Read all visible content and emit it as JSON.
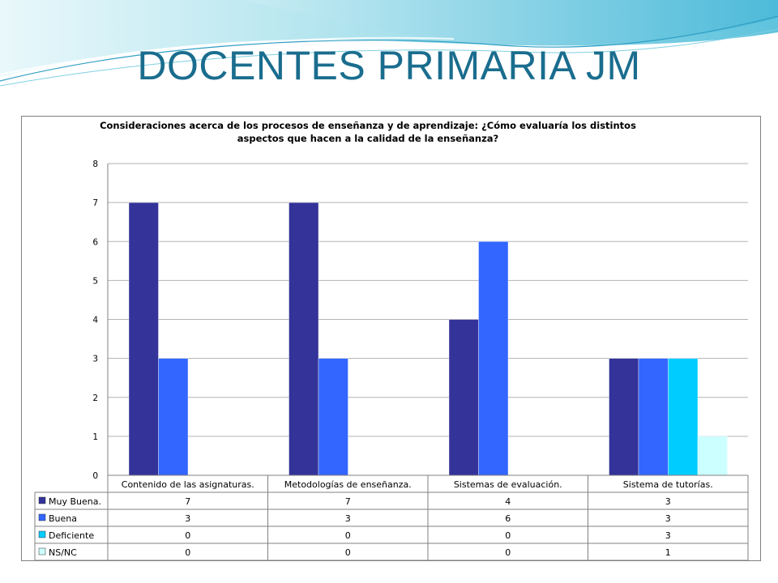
{
  "slide": {
    "title": "DOCENTES PRIMARIA JM"
  },
  "colors": {
    "title": "#1a6d8e",
    "decor_light": "#bfe8ef",
    "decor_mid": "#7fd0e2",
    "decor_dark": "#2f9fc4"
  },
  "chart_data": {
    "type": "bar",
    "title_lines": [
      "Consideraciones acerca de los procesos de enseñanza y de aprendizaje: ¿Cómo evaluaría los distintos",
      "aspectos que hacen a la calidad de la enseñanza?"
    ],
    "categories": [
      "Contenido de las asignaturas.",
      "Metodologías de enseñanza.",
      "Sistemas de evaluación.",
      "Sistema de tutorías."
    ],
    "series": [
      {
        "name": "Muy Buena.",
        "color": "#333399",
        "values": [
          7,
          7,
          4,
          3
        ]
      },
      {
        "name": "Buena",
        "color": "#3366ff",
        "values": [
          3,
          3,
          6,
          3
        ]
      },
      {
        "name": "Deficiente",
        "color": "#00ccff",
        "values": [
          0,
          0,
          0,
          3
        ]
      },
      {
        "name": "NS/NC",
        "color": "#ccffff",
        "values": [
          0,
          0,
          0,
          1
        ]
      }
    ],
    "ylim": [
      0,
      8
    ],
    "yticks": [
      0,
      1,
      2,
      3,
      4,
      5,
      6,
      7,
      8
    ],
    "grid": true,
    "legend": "data-table"
  }
}
